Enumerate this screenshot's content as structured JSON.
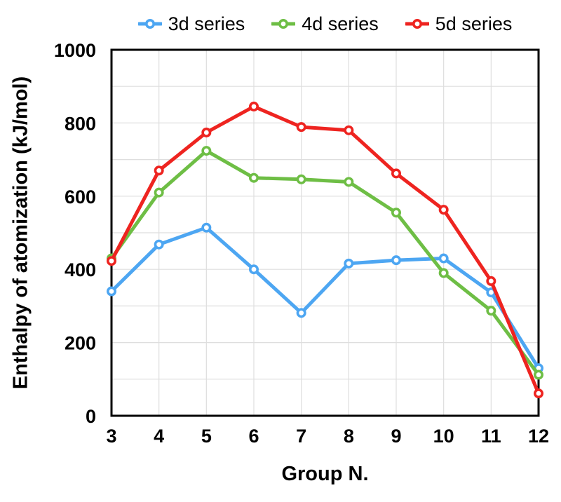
{
  "chart_data": {
    "type": "line",
    "title": "",
    "xlabel": "Group N.",
    "ylabel": "Enthalpy of atomization (kJ/mol)",
    "x": [
      3,
      4,
      5,
      6,
      7,
      8,
      9,
      10,
      11,
      12
    ],
    "series": [
      {
        "name": "3d series",
        "color": "#4DA6F2",
        "values": [
          340,
          468,
          514,
          400,
          281,
          416,
          425,
          430,
          337,
          130
        ]
      },
      {
        "name": "4d series",
        "color": "#6EBE45",
        "values": [
          430,
          610,
          724,
          650,
          646,
          639,
          555,
          390,
          287,
          112
        ]
      },
      {
        "name": "5d series",
        "color": "#EE2420",
        "values": [
          423,
          670,
          774,
          845,
          789,
          780,
          662,
          563,
          368,
          61
        ]
      }
    ],
    "ylim": [
      0,
      1000
    ],
    "yticks": [
      0,
      200,
      400,
      600,
      800,
      1000
    ],
    "y_grid_step": 100,
    "grid": true,
    "grid_color": "#DEDEDE",
    "frame_color": "#000000",
    "text_color": "#000000",
    "legend_position": "top"
  }
}
